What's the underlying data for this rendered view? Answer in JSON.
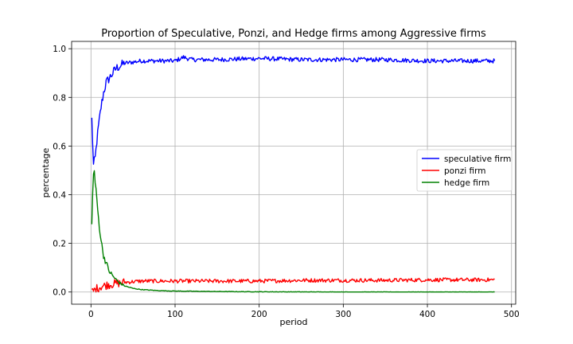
{
  "chart_data": {
    "type": "line",
    "title": "Proportion of Speculative, Ponzi, and Hedge firms among Aggressive firms",
    "xlabel": "period",
    "ylabel": "percentage",
    "xlim": [
      -23,
      505
    ],
    "ylim": [
      -0.05,
      1.03
    ],
    "xticks": [
      0,
      100,
      200,
      300,
      400,
      500
    ],
    "yticks": [
      0.0,
      0.2,
      0.4,
      0.6,
      0.8,
      1.0
    ],
    "grid": true,
    "legend_position": "center-right",
    "series": [
      {
        "name": "speculative firm",
        "color": "#0000ff",
        "x": [
          1,
          3,
          5,
          7,
          9,
          12,
          15,
          18,
          22,
          26,
          30,
          35,
          40,
          50,
          60,
          80,
          100,
          110,
          120,
          150,
          200,
          250,
          300,
          350,
          400,
          450,
          480
        ],
        "y": [
          0.71,
          0.52,
          0.55,
          0.62,
          0.68,
          0.76,
          0.82,
          0.86,
          0.88,
          0.9,
          0.92,
          0.93,
          0.94,
          0.945,
          0.95,
          0.95,
          0.95,
          0.965,
          0.955,
          0.955,
          0.96,
          0.955,
          0.955,
          0.955,
          0.95,
          0.95,
          0.95
        ]
      },
      {
        "name": "ponzi firm",
        "color": "#ff0000",
        "x": [
          1,
          3,
          5,
          7,
          10,
          15,
          20,
          30,
          40,
          60,
          80,
          100,
          150,
          200,
          250,
          300,
          350,
          400,
          450,
          480
        ],
        "y": [
          0.0,
          0.005,
          0.01,
          0.015,
          0.02,
          0.025,
          0.03,
          0.035,
          0.04,
          0.045,
          0.045,
          0.045,
          0.045,
          0.045,
          0.048,
          0.048,
          0.048,
          0.05,
          0.05,
          0.05
        ]
      },
      {
        "name": "hedge firm",
        "color": "#008000",
        "x": [
          1,
          2,
          3,
          4,
          5,
          7,
          9,
          11,
          13,
          15,
          18,
          21,
          25,
          30,
          35,
          40,
          50,
          60,
          80,
          100,
          150,
          200,
          300,
          400,
          480
        ],
        "y": [
          0.29,
          0.4,
          0.48,
          0.5,
          0.45,
          0.38,
          0.3,
          0.24,
          0.19,
          0.15,
          0.12,
          0.09,
          0.07,
          0.05,
          0.035,
          0.025,
          0.015,
          0.01,
          0.006,
          0.004,
          0.002,
          0.001,
          0.0,
          0.0,
          0.0
        ]
      }
    ]
  }
}
